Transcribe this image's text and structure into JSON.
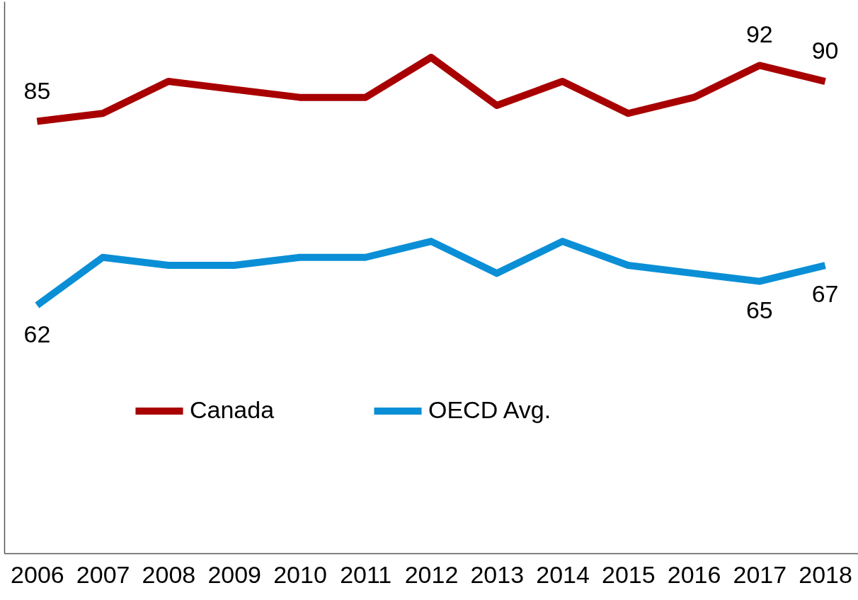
{
  "chart_data": {
    "type": "line",
    "categories": [
      "2006",
      "2007",
      "2008",
      "2009",
      "2010",
      "2011",
      "2012",
      "2013",
      "2014",
      "2015",
      "2016",
      "2017",
      "2018"
    ],
    "series": [
      {
        "name": "Canada",
        "color": "#a80000",
        "values": [
          85,
          86,
          90,
          89,
          88,
          88,
          93,
          87,
          90,
          86,
          88,
          92,
          90
        ],
        "value_labels": [
          "85",
          null,
          null,
          null,
          null,
          null,
          null,
          null,
          null,
          null,
          null,
          "92",
          "90"
        ]
      },
      {
        "name": "OECD Avg.",
        "color": "#0a8fd6",
        "values": [
          62,
          68,
          67,
          67,
          68,
          68,
          70,
          66,
          70,
          67,
          66,
          65,
          67
        ],
        "value_labels": [
          "62",
          null,
          null,
          null,
          null,
          null,
          null,
          null,
          null,
          null,
          null,
          "65",
          "67"
        ]
      }
    ],
    "ylim": [
      31,
      100
    ],
    "tick_labels": "x",
    "grid": false,
    "legend": "bottom left",
    "marker": "none",
    "line_style": "solid"
  }
}
